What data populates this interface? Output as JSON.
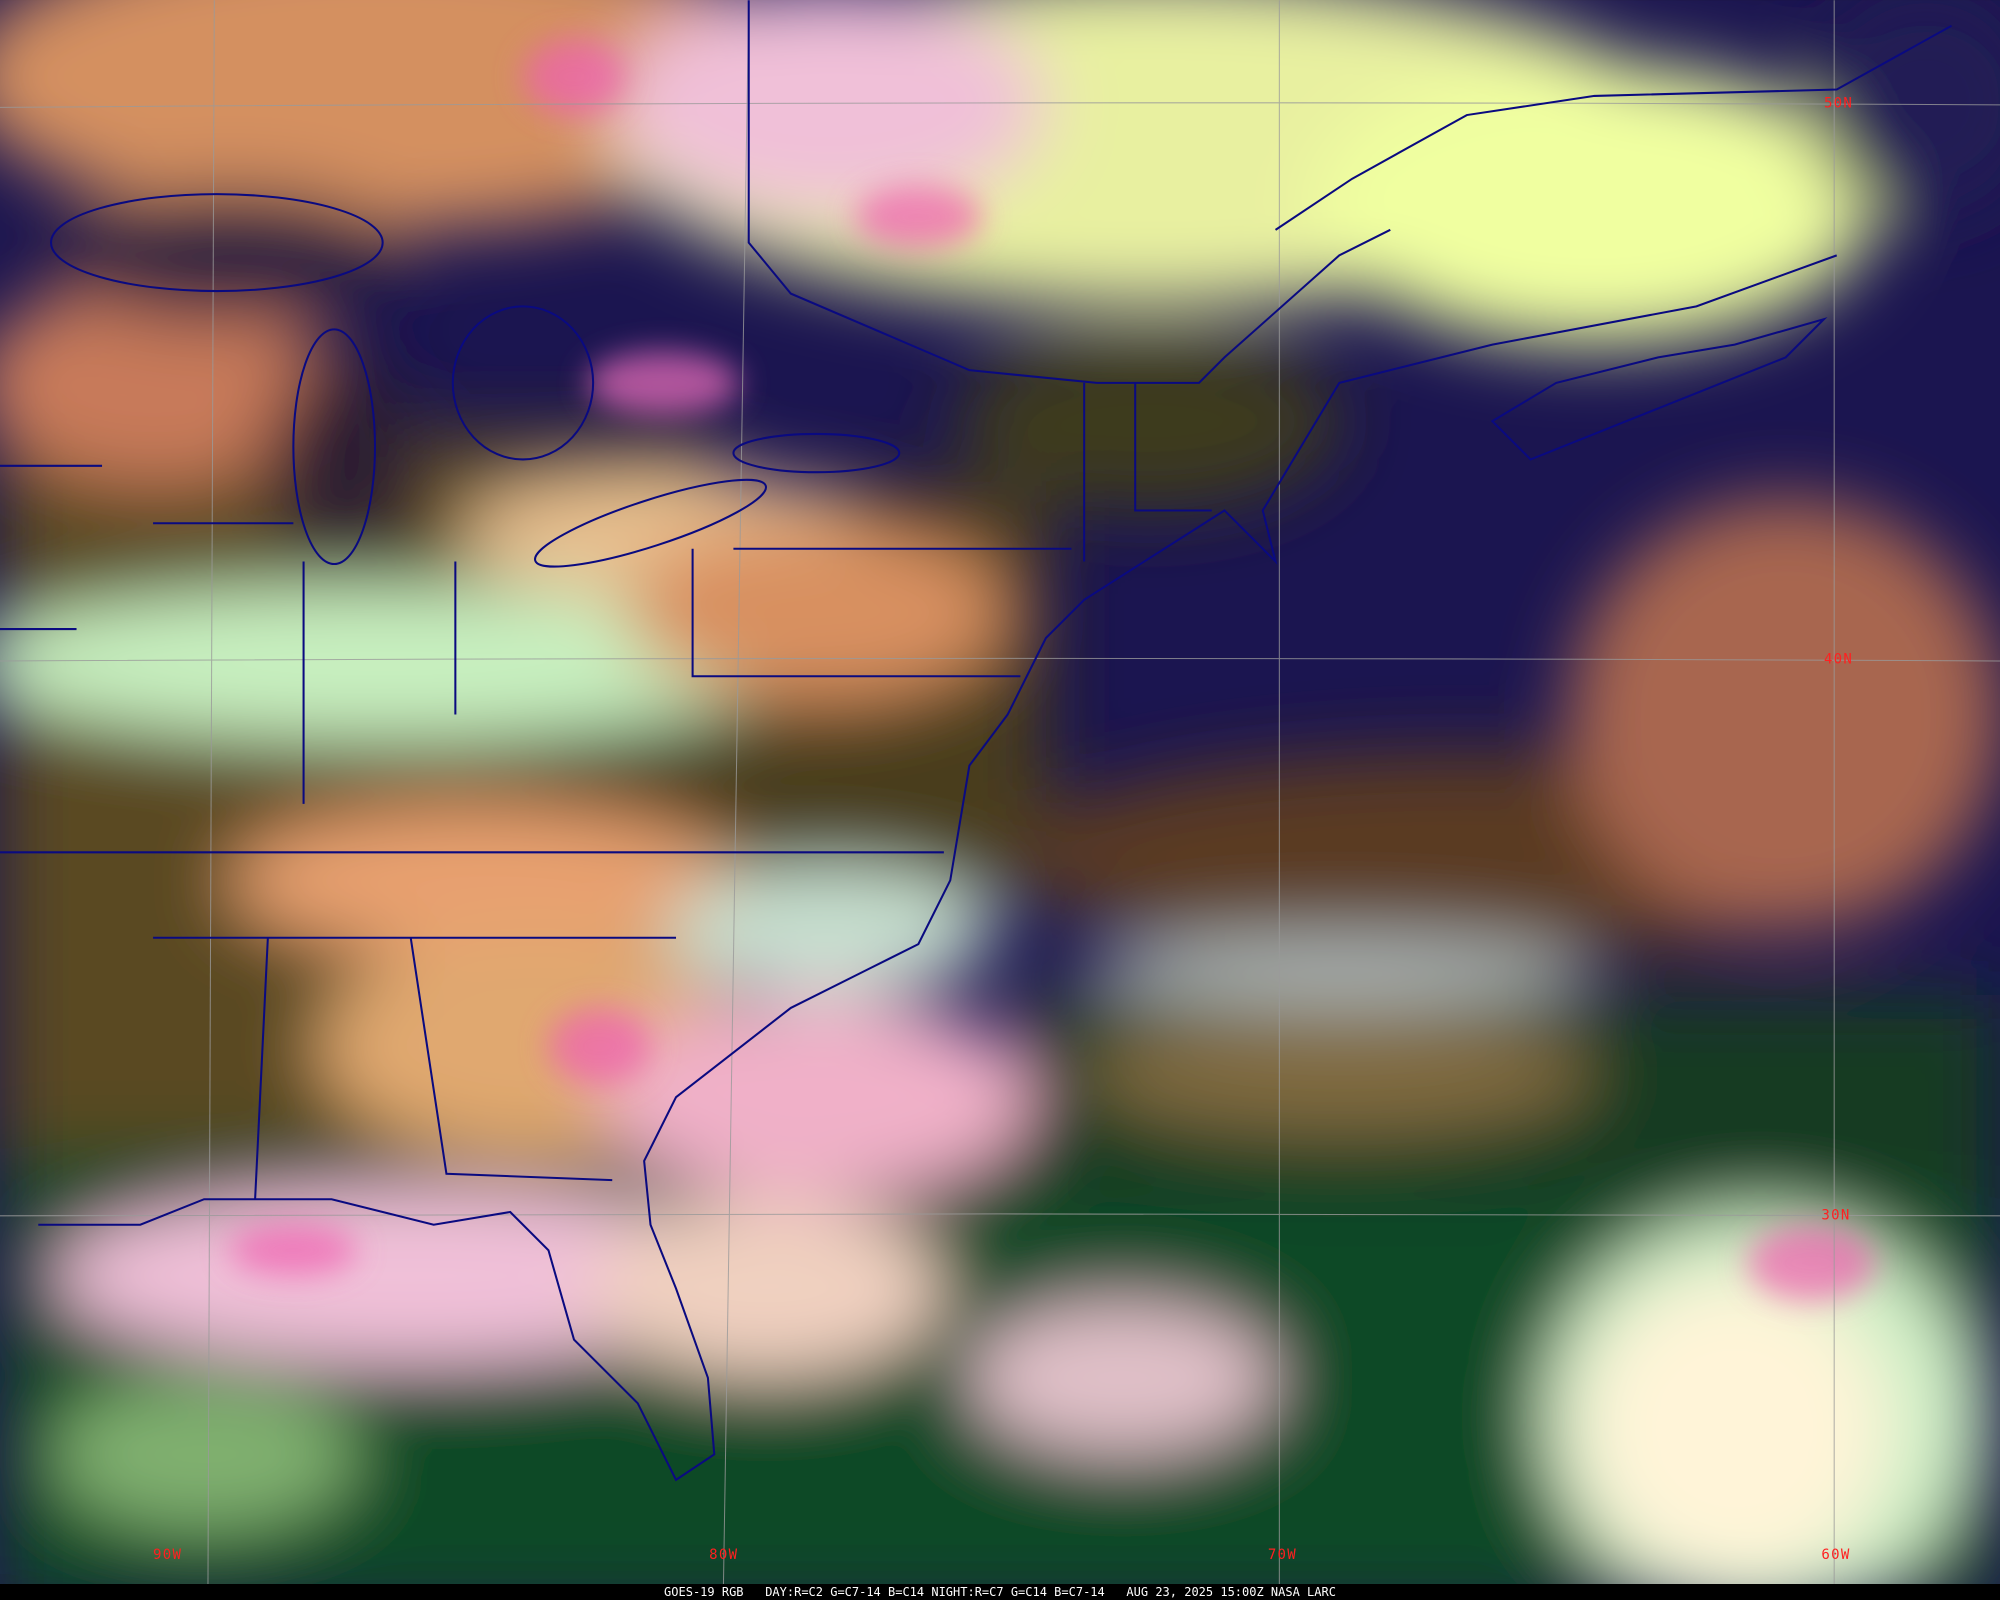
{
  "caption": "GOES-19 RGB   DAY:R=C2 G=C7-14 B=C14 NIGHT:R=C7 G=C14 B=C7-14   AUG 23, 2025 15:00Z NASA LARC",
  "latitude_labels": [
    "50N",
    "40N",
    "30N"
  ],
  "longitude_labels": [
    "90W",
    "80W",
    "70W",
    "60W"
  ],
  "colors": {
    "ocean_clear": "#1b1550",
    "ocean_south": "#0f4a28",
    "land": "#5a4a22",
    "cloud_low": "#e8a070",
    "cloud_high": "#f0ffa0",
    "cloud_ice": "#f070c0",
    "hurricane_core": "#fff4d8",
    "borders": "#0a0a80",
    "gridlines": "#9a9a9a",
    "labels": "#ff2020"
  }
}
